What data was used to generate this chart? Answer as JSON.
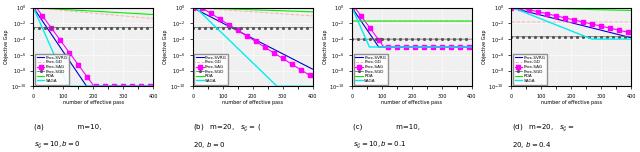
{
  "figsize": [
    6.4,
    1.52
  ],
  "dpi": 100,
  "x_max": 400,
  "xlabel": "number of effective pass",
  "ylabel": "Objective Gap",
  "legend_labels": [
    "Prox-SVRG",
    "Prox-GD",
    "Prox-SAG",
    "Prox-SGD",
    "RDA",
    "SAGA"
  ],
  "legend_styles": [
    {
      "color": "#0000CC",
      "ls": "-",
      "lw": 0.8,
      "marker": null
    },
    {
      "color": "#FFB0B0",
      "ls": "--",
      "lw": 0.7,
      "marker": null
    },
    {
      "color": "#FF00FF",
      "ls": "-",
      "lw": 0.8,
      "marker": "s"
    },
    {
      "color": "#555555",
      "ls": "-",
      "lw": 0.5,
      "marker": "."
    },
    {
      "color": "#00EE00",
      "ls": "-",
      "lw": 0.8,
      "marker": null
    },
    {
      "color": "#00EEEE",
      "ls": "-",
      "lw": 1.0,
      "marker": null
    }
  ],
  "ylim_log": [
    -10,
    0
  ],
  "bg_color": "#F0F0F0",
  "panel_labels": [
    "(a)",
    "(b)",
    "(c)",
    "(d)"
  ],
  "caption_line1": [
    "(a)                m=10,",
    "(b)   m=20,   $s_{\\mathcal{G}}$   = (",
    "(c)                m=10,",
    "(d)   m=20,   $s_{\\mathcal{G}}$   ="
  ],
  "caption_line2": [
    "$s_{\\mathcal{G}} = 10, b = 0$",
    "20, b = 0",
    "$s_{\\mathcal{G}} = 10, b = 0.1$",
    "20, b = 0.4"
  ]
}
